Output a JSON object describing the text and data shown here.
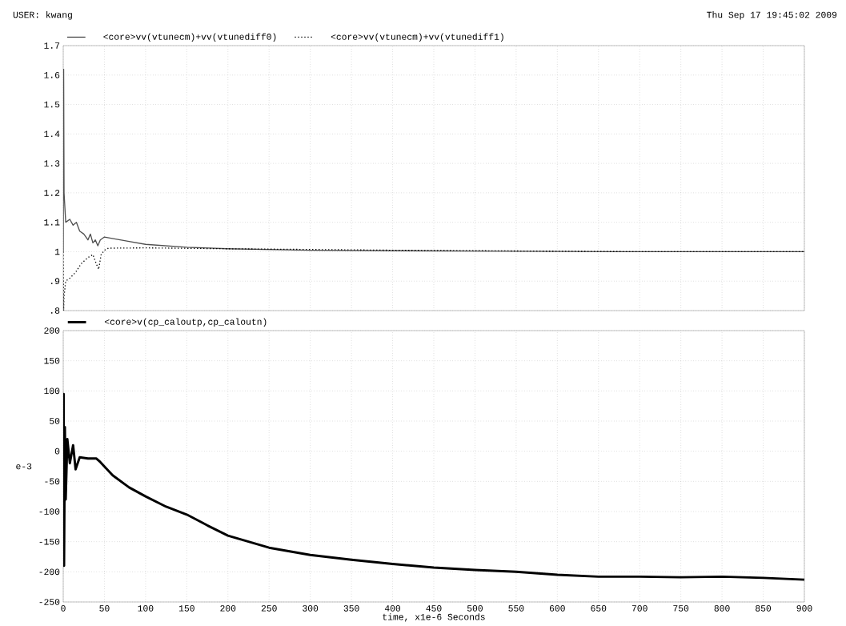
{
  "chart_data": [
    {
      "type": "line",
      "annotations": [
        "USER: kwang",
        "Thu Sep 17 19:45:02 2009"
      ],
      "xlim": [
        0,
        900
      ],
      "xticks": [
        0,
        50,
        100,
        150,
        200,
        250,
        300,
        350,
        400,
        450,
        500,
        550,
        600,
        650,
        700,
        750,
        800,
        850,
        900
      ],
      "ylim": [
        0.8,
        1.7
      ],
      "yticks": [
        {
          "value": 0.8,
          "label": ".8"
        },
        {
          "value": 0.9,
          "label": ".9"
        },
        1,
        1.1,
        1.2,
        1.3,
        1.4,
        1.5,
        1.6,
        1.7
      ],
      "grid": true,
      "legend": "top left",
      "tick_labels": "y",
      "series": [
        {
          "name": "<core>vv(vtunecm)+vv(vtunediff0)",
          "color": "#505050",
          "line_style": "solid",
          "x": [
            0,
            0.5,
            1,
            3,
            8,
            12,
            16,
            20,
            25,
            30,
            33,
            36,
            39,
            42,
            45,
            50,
            60,
            80,
            100,
            150,
            200,
            300,
            500,
            700,
            900
          ],
          "values": [
            1.0,
            1.62,
            1.2,
            1.1,
            1.11,
            1.09,
            1.1,
            1.07,
            1.06,
            1.04,
            1.06,
            1.03,
            1.04,
            1.02,
            1.04,
            1.05,
            1.045,
            1.035,
            1.025,
            1.015,
            1.01,
            1.005,
            1.002,
            1.0,
            1.0
          ]
        },
        {
          "name": "<core>vv(vtunecm)+vv(vtunediff1)",
          "color": "#000000",
          "line_style": "dotted",
          "x": [
            0,
            0.5,
            1,
            3,
            8,
            15,
            22,
            30,
            36,
            40,
            43,
            46,
            50,
            55,
            100,
            200,
            400,
            700,
            900
          ],
          "values": [
            1.0,
            0.8,
            0.85,
            0.9,
            0.91,
            0.93,
            0.96,
            0.98,
            0.99,
            0.96,
            0.94,
            0.99,
            1.005,
            1.012,
            1.013,
            1.01,
            1.005,
            1.0,
            1.0
          ]
        }
      ]
    },
    {
      "type": "line",
      "xlabel": "time, x1e-6 Seconds",
      "ylabel": "e-3",
      "xlim": [
        0,
        900
      ],
      "xticks": [
        0,
        50,
        100,
        150,
        200,
        250,
        300,
        350,
        400,
        450,
        500,
        550,
        600,
        650,
        700,
        750,
        800,
        850,
        900
      ],
      "ylim": [
        -250,
        200
      ],
      "yticks": [
        -250,
        -200,
        -150,
        -100,
        -50,
        0,
        50,
        100,
        150,
        200
      ],
      "grid": true,
      "legend": "top left",
      "series": [
        {
          "name": "<core>v(cp_caloutp,cp_caloutn)",
          "color": "#000000",
          "line_style": "solid",
          "x": [
            0,
            0.5,
            1,
            2,
            3,
            5,
            8,
            12,
            15,
            20,
            30,
            40,
            45,
            60,
            80,
            100,
            125,
            150,
            175,
            200,
            250,
            300,
            350,
            400,
            450,
            500,
            550,
            600,
            650,
            700,
            750,
            800,
            850,
            900
          ],
          "values": [
            0,
            95,
            -190,
            40,
            -80,
            20,
            -20,
            10,
            -30,
            -10,
            -12,
            -12,
            -18,
            -40,
            -60,
            -75,
            -92,
            -105,
            -123,
            -140,
            -160,
            -172,
            -180,
            -187,
            -193,
            -197,
            -200,
            -205,
            -208,
            -208,
            -209,
            -208,
            -210,
            -213
          ]
        }
      ]
    }
  ]
}
